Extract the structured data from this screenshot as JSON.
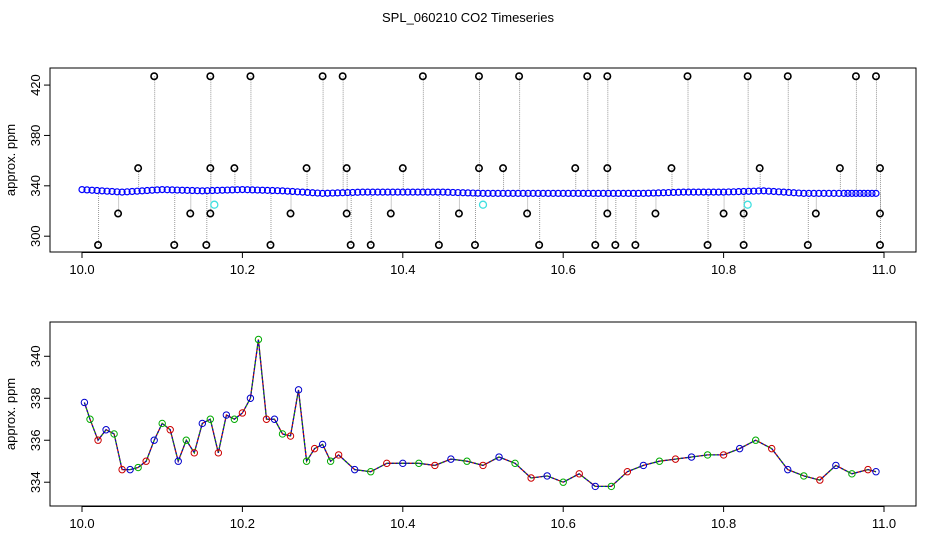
{
  "title": "SPL_060210  CO2 Timeseries",
  "chart_data": [
    {
      "type": "scatter",
      "title": "SPL_060210  CO2 Timeseries",
      "ylabel": "approx. ppm",
      "xlabel": "",
      "xlim": [
        10.0,
        11.0
      ],
      "ylim": [
        293,
        428
      ],
      "x_ticks": [
        "10.0",
        "10.2",
        "10.4",
        "10.6",
        "10.8",
        "11.0"
      ],
      "y_ticks": [
        "300",
        "340",
        "380",
        "420"
      ],
      "grid": false,
      "colors": {
        "main": "#0000ff",
        "outlier": "#000000",
        "cyan": "#40e0e0",
        "trace": "#7f7f7f"
      },
      "series": [
        {
          "values": [
            [
              10.0,
              337
            ],
            [
              10.05,
              335
            ],
            [
              10.1,
              337
            ],
            [
              10.15,
              336
            ],
            [
              10.2,
              337
            ],
            [
              10.25,
              336
            ],
            [
              10.3,
              334
            ],
            [
              10.35,
              335
            ],
            [
              10.4,
              335
            ],
            [
              10.45,
              335
            ],
            [
              10.5,
              334
            ],
            [
              10.55,
              334
            ],
            [
              10.6,
              334
            ],
            [
              10.65,
              334
            ],
            [
              10.7,
              334
            ],
            [
              10.75,
              335
            ],
            [
              10.8,
              335
            ],
            [
              10.85,
              336
            ],
            [
              10.9,
              334
            ],
            [
              10.95,
              334
            ],
            [
              10.99,
              334
            ]
          ]
        },
        {
          "values": [
            [
              10.09,
              427
            ],
            [
              10.16,
              427
            ],
            [
              10.21,
              427
            ],
            [
              10.3,
              427
            ],
            [
              10.325,
              427
            ],
            [
              10.425,
              427
            ],
            [
              10.495,
              427
            ],
            [
              10.545,
              427
            ],
            [
              10.63,
              427
            ],
            [
              10.655,
              427
            ],
            [
              10.755,
              427
            ],
            [
              10.83,
              427
            ],
            [
              10.88,
              427
            ],
            [
              10.965,
              427
            ],
            [
              10.99,
              427
            ],
            [
              10.07,
              354
            ],
            [
              10.16,
              354
            ],
            [
              10.19,
              354
            ],
            [
              10.28,
              354
            ],
            [
              10.33,
              354
            ],
            [
              10.4,
              354
            ],
            [
              10.495,
              354
            ],
            [
              10.525,
              354
            ],
            [
              10.615,
              354
            ],
            [
              10.655,
              354
            ],
            [
              10.735,
              354
            ],
            [
              10.845,
              354
            ],
            [
              10.945,
              354
            ],
            [
              10.995,
              354
            ],
            [
              10.045,
              318
            ],
            [
              10.135,
              318
            ],
            [
              10.16,
              318
            ],
            [
              10.26,
              318
            ],
            [
              10.33,
              318
            ],
            [
              10.385,
              318
            ],
            [
              10.47,
              318
            ],
            [
              10.555,
              318
            ],
            [
              10.655,
              318
            ],
            [
              10.715,
              318
            ],
            [
              10.8,
              318
            ],
            [
              10.825,
              318
            ],
            [
              10.915,
              318
            ],
            [
              10.995,
              318
            ],
            [
              10.02,
              293
            ],
            [
              10.115,
              293
            ],
            [
              10.155,
              293
            ],
            [
              10.235,
              293
            ],
            [
              10.335,
              293
            ],
            [
              10.36,
              293
            ],
            [
              10.445,
              293
            ],
            [
              10.49,
              293
            ],
            [
              10.57,
              293
            ],
            [
              10.64,
              293
            ],
            [
              10.665,
              293
            ],
            [
              10.69,
              293
            ],
            [
              10.78,
              293
            ],
            [
              10.825,
              293
            ],
            [
              10.905,
              293
            ],
            [
              10.995,
              293
            ]
          ]
        },
        {
          "values": [
            [
              10.165,
              325
            ],
            [
              10.5,
              325
            ],
            [
              10.83,
              325
            ]
          ]
        }
      ]
    },
    {
      "type": "line",
      "title": "",
      "ylabel": "approx. ppm",
      "xlabel": "",
      "xlim": [
        10.0,
        11.0
      ],
      "ylim": [
        333.2,
        341.3
      ],
      "x_ticks": [
        "10.0",
        "10.2",
        "10.4",
        "10.6",
        "10.8",
        "11.0"
      ],
      "y_ticks": [
        "334",
        "336",
        "338",
        "340"
      ],
      "grid": false,
      "series": [
        {
          "values": [
            [
              10.003,
              337.8
            ],
            [
              10.01,
              337.0
            ],
            [
              10.02,
              336.0
            ],
            [
              10.03,
              336.5
            ],
            [
              10.04,
              336.3
            ],
            [
              10.05,
              334.6
            ],
            [
              10.06,
              334.6
            ],
            [
              10.07,
              334.7
            ],
            [
              10.08,
              335.0
            ],
            [
              10.09,
              336.0
            ],
            [
              10.1,
              336.8
            ],
            [
              10.11,
              336.5
            ],
            [
              10.12,
              335.0
            ],
            [
              10.13,
              336.0
            ],
            [
              10.14,
              335.4
            ],
            [
              10.15,
              336.8
            ],
            [
              10.16,
              337.0
            ],
            [
              10.17,
              335.4
            ],
            [
              10.18,
              337.2
            ],
            [
              10.19,
              337.0
            ],
            [
              10.2,
              337.3
            ],
            [
              10.21,
              338.0
            ],
            [
              10.22,
              340.8
            ],
            [
              10.23,
              337.0
            ],
            [
              10.24,
              337.0
            ],
            [
              10.25,
              336.3
            ],
            [
              10.26,
              336.2
            ],
            [
              10.27,
              338.4
            ],
            [
              10.28,
              335.0
            ],
            [
              10.29,
              335.6
            ],
            [
              10.3,
              335.8
            ],
            [
              10.31,
              335.0
            ],
            [
              10.32,
              335.3
            ],
            [
              10.34,
              334.6
            ],
            [
              10.36,
              334.5
            ],
            [
              10.38,
              334.9
            ],
            [
              10.4,
              334.9
            ],
            [
              10.42,
              334.9
            ],
            [
              10.44,
              334.8
            ],
            [
              10.46,
              335.1
            ],
            [
              10.48,
              335.0
            ],
            [
              10.5,
              334.8
            ],
            [
              10.52,
              335.2
            ],
            [
              10.54,
              334.9
            ],
            [
              10.56,
              334.2
            ],
            [
              10.58,
              334.3
            ],
            [
              10.6,
              334.0
            ],
            [
              10.62,
              334.4
            ],
            [
              10.64,
              333.8
            ],
            [
              10.66,
              333.8
            ],
            [
              10.68,
              334.5
            ],
            [
              10.7,
              334.8
            ],
            [
              10.72,
              335.0
            ],
            [
              10.74,
              335.1
            ],
            [
              10.76,
              335.2
            ],
            [
              10.78,
              335.3
            ],
            [
              10.8,
              335.3
            ],
            [
              10.82,
              335.6
            ],
            [
              10.84,
              336.0
            ],
            [
              10.86,
              335.6
            ],
            [
              10.88,
              334.6
            ],
            [
              10.9,
              334.3
            ],
            [
              10.92,
              334.1
            ],
            [
              10.94,
              334.8
            ],
            [
              10.96,
              334.4
            ],
            [
              10.98,
              334.6
            ],
            [
              10.99,
              334.5
            ]
          ]
        }
      ]
    }
  ]
}
